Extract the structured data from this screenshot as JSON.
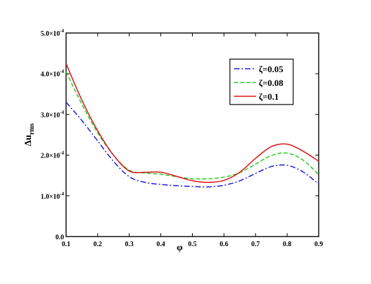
{
  "chart_data": {
    "type": "line",
    "title": "",
    "xlabel": "φ",
    "ylabel": {
      "main": "Δu",
      "subscript": "rms"
    },
    "xlim": [
      0.1,
      0.9
    ],
    "ylim": [
      0,
      0.0005
    ],
    "x_ticks": [
      0.1,
      0.2,
      0.3,
      0.4,
      0.5,
      0.6,
      0.7,
      0.8,
      0.9
    ],
    "x_tick_labels": [
      "0.1",
      "0.2",
      "0.3",
      "0.4",
      "0.5",
      "0.6",
      "0.7",
      "0.8",
      "0.9"
    ],
    "y_ticks": [
      0,
      0.0001,
      0.0002,
      0.0003,
      0.0004,
      0.0005
    ],
    "y_tick_labels": [
      {
        "mantissa": "0.0",
        "exponent": ""
      },
      {
        "mantissa": "1.0×10",
        "exponent": "-4"
      },
      {
        "mantissa": "2.0×10",
        "exponent": "-4"
      },
      {
        "mantissa": "3.0×10",
        "exponent": "-4"
      },
      {
        "mantissa": "4.0×10",
        "exponent": "-4"
      },
      {
        "mantissa": "5.0×10",
        "exponent": "-4"
      }
    ],
    "grid": false,
    "legend_position": "top-right",
    "series": [
      {
        "name": "ζ=0.05",
        "color": "#1a1adb",
        "style": "dash-dot",
        "x": [
          0.1,
          0.15,
          0.2,
          0.25,
          0.3,
          0.35,
          0.4,
          0.45,
          0.5,
          0.55,
          0.6,
          0.65,
          0.7,
          0.75,
          0.8,
          0.85,
          0.9
        ],
        "y": [
          0.00033,
          0.000285,
          0.000235,
          0.000185,
          0.000147,
          0.000133,
          0.000128,
          0.000125,
          0.000123,
          0.000122,
          0.000126,
          0.000137,
          0.000155,
          0.000172,
          0.000175,
          0.000159,
          0.000129
        ]
      },
      {
        "name": "ζ=0.08",
        "color": "#22cc22",
        "style": "dashed",
        "x": [
          0.1,
          0.15,
          0.2,
          0.25,
          0.3,
          0.35,
          0.4,
          0.45,
          0.5,
          0.55,
          0.6,
          0.65,
          0.7,
          0.75,
          0.8,
          0.85,
          0.9
        ],
        "y": [
          0.000405,
          0.000325,
          0.000255,
          0.0002,
          0.000163,
          0.000156,
          0.000153,
          0.000147,
          0.000142,
          0.000142,
          0.000146,
          0.000157,
          0.000178,
          0.000199,
          0.000205,
          0.000188,
          0.000152
        ]
      },
      {
        "name": "ζ=0.1",
        "color": "#dd1111",
        "style": "solid",
        "x": [
          0.1,
          0.15,
          0.2,
          0.25,
          0.3,
          0.35,
          0.4,
          0.45,
          0.5,
          0.55,
          0.6,
          0.65,
          0.7,
          0.75,
          0.8,
          0.85,
          0.9
        ],
        "y": [
          0.000425,
          0.000335,
          0.00026,
          0.0002,
          0.000161,
          0.000158,
          0.000158,
          0.000148,
          0.000137,
          0.000133,
          0.000138,
          0.000158,
          0.000192,
          0.000221,
          0.000227,
          0.00021,
          0.000185
        ]
      }
    ]
  }
}
